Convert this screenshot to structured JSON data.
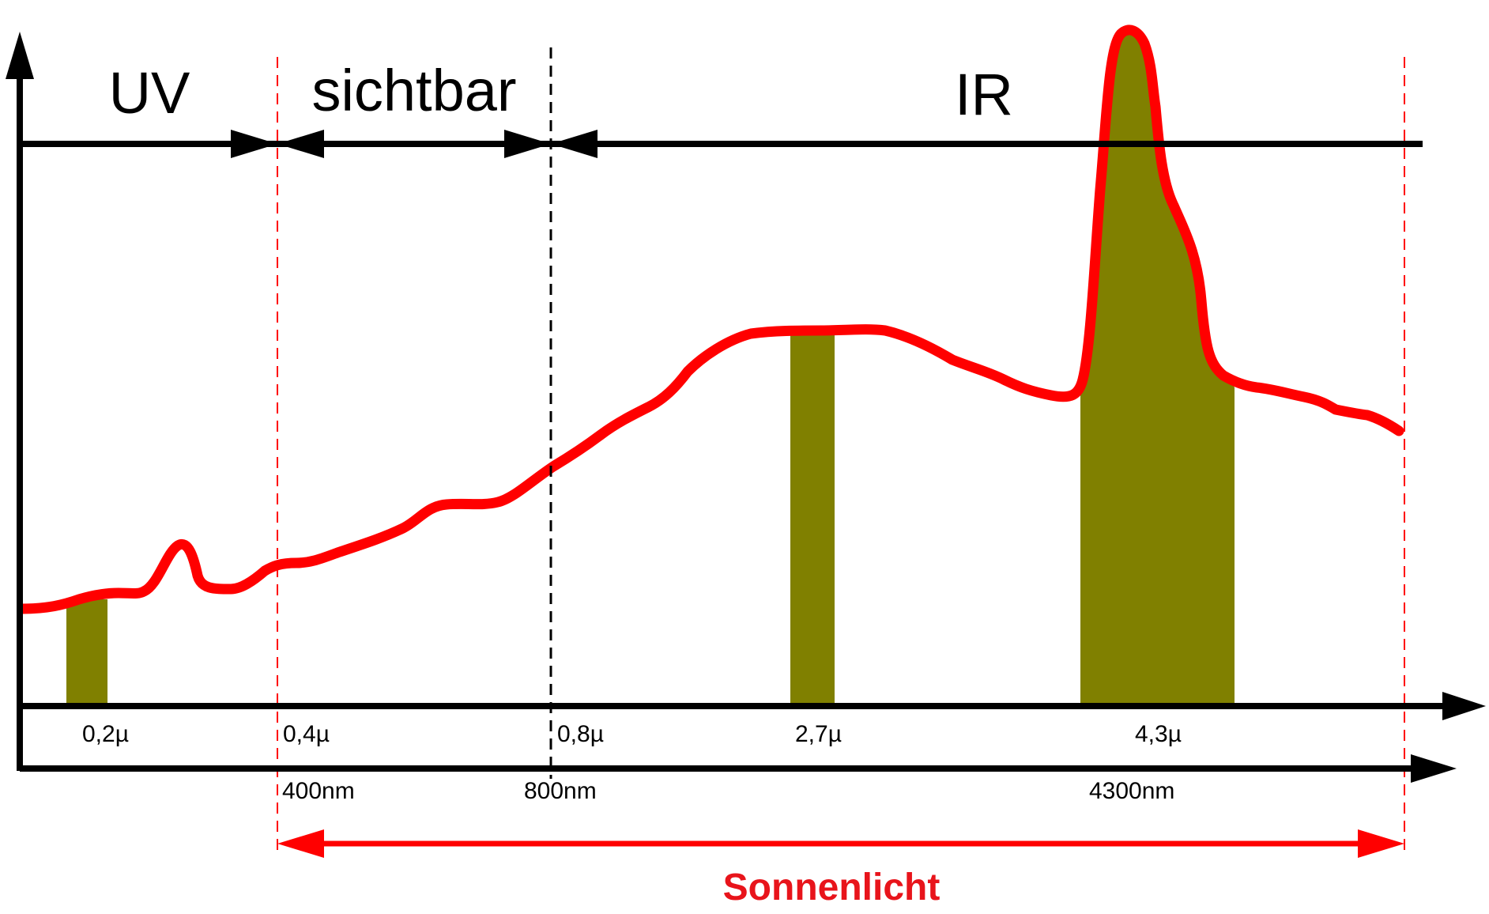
{
  "colors": {
    "curve": "#ff0000",
    "fill": "#808000",
    "axis": "#000000",
    "sun_marker": "#ff0000"
  },
  "regions": {
    "uv": "UV",
    "visible": "sichtbar",
    "ir": "IR"
  },
  "ticks_micron": [
    "0,2µ",
    "0,4µ",
    "0,8µ",
    "2,7µ",
    "4,3µ"
  ],
  "ticks_nm": [
    "400nm",
    "800nm",
    "4300nm"
  ],
  "sunlight_label": "Sonnenlicht",
  "chart_data": {
    "type": "area",
    "x_tick_labels": [
      "0,2µ",
      "0,4µ",
      "0,8µ",
      "2,7µ",
      "4,3µ"
    ],
    "secondary_x_tick_labels": [
      "400nm",
      "800nm",
      "4300nm"
    ],
    "highlighted_bands": [
      "0,2µ",
      "2,7µ",
      "4,3µ"
    ],
    "regions": [
      "UV",
      "sichtbar",
      "IR"
    ],
    "span_label": "Sonnenlicht",
    "xlabel": "",
    "ylabel": ""
  }
}
